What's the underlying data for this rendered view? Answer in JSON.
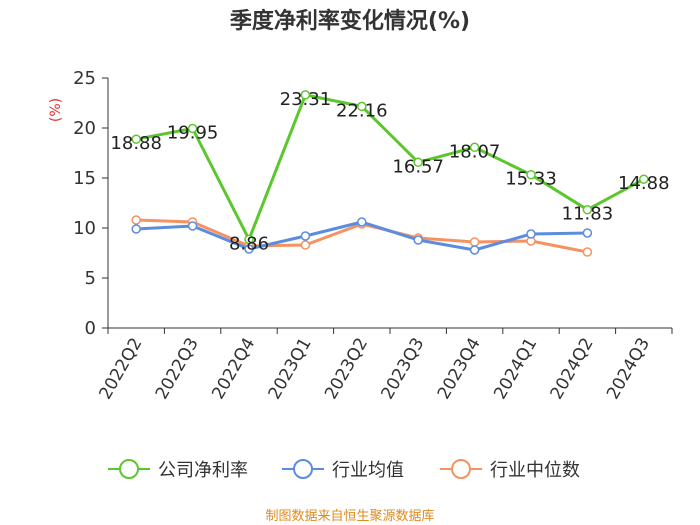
{
  "source_text": "制图数据来自恒生聚源数据库",
  "chart_data": {
    "type": "line",
    "title": "季度净利率变化情况(%)",
    "ylabel": "(%)",
    "xlabel": "",
    "ylim": [
      0,
      25
    ],
    "yticks": [
      0,
      5,
      10,
      15,
      20,
      25
    ],
    "categories": [
      "2022Q2",
      "2022Q3",
      "2022Q4",
      "2023Q1",
      "2023Q2",
      "2023Q3",
      "2023Q4",
      "2024Q1",
      "2024Q2",
      "2024Q3"
    ],
    "grid": false,
    "legend_position": "bottom",
    "series": [
      {
        "name": "公司净利率",
        "color": "#5cc72d",
        "show_labels": true,
        "values": [
          18.88,
          19.95,
          8.86,
          23.31,
          22.16,
          16.57,
          18.07,
          15.33,
          11.83,
          14.88
        ],
        "labels": [
          "18.88",
          "19.95",
          "8.86",
          "23.31",
          "22.16",
          "16.57",
          "18.07",
          "15.33",
          "11.83",
          "14.88"
        ]
      },
      {
        "name": "行业均值",
        "color": "#5b8ce0",
        "show_labels": false,
        "values": [
          9.9,
          10.2,
          7.9,
          9.2,
          10.6,
          8.8,
          7.8,
          9.4,
          9.5,
          null
        ]
      },
      {
        "name": "行业中位数",
        "color": "#f59262",
        "show_labels": false,
        "values": [
          10.8,
          10.6,
          8.2,
          8.3,
          10.4,
          9.0,
          8.6,
          8.7,
          7.6,
          null
        ]
      }
    ]
  }
}
